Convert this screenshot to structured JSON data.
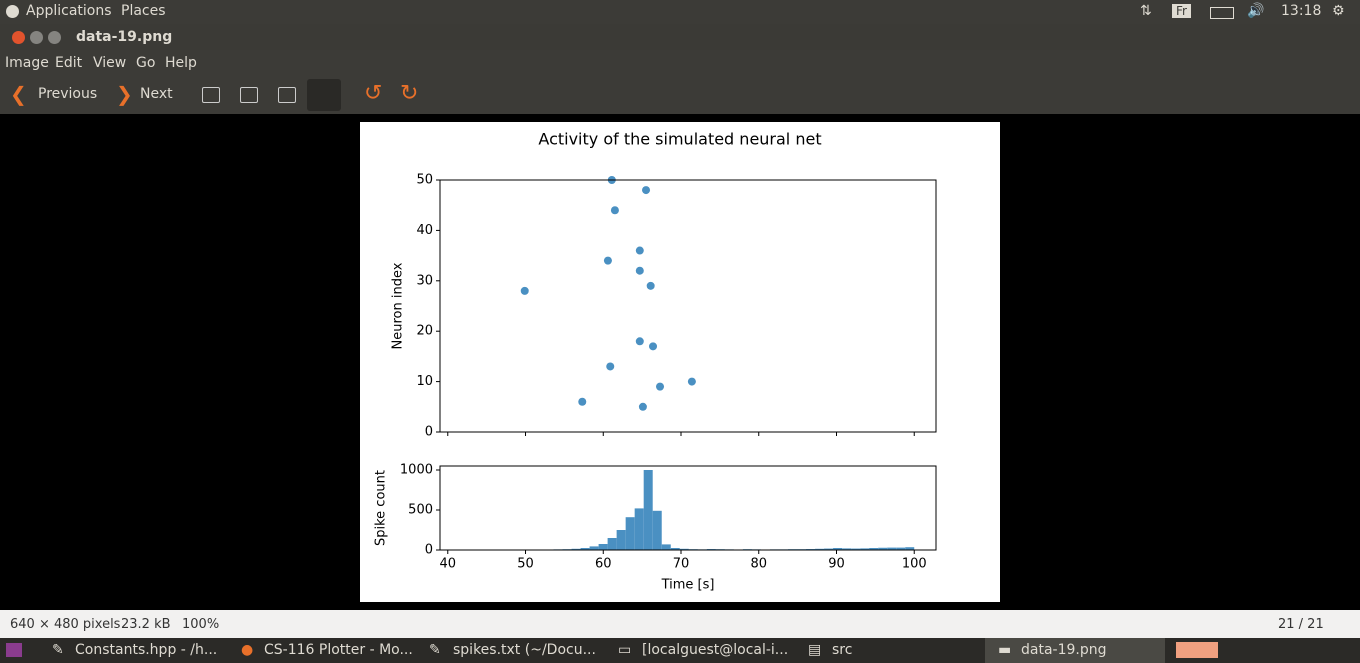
{
  "top_panel": {
    "menus": [
      "Applications",
      "Places"
    ],
    "keyboard": "Fr",
    "clock": "13:18"
  },
  "window": {
    "title": "data-19.png"
  },
  "menu": [
    "Image",
    "Edit",
    "View",
    "Go",
    "Help"
  ],
  "toolbar": {
    "previous": "Previous",
    "next": "Next"
  },
  "chart_data": [
    {
      "type": "scatter",
      "title": "Activity of the simulated neural net",
      "y_label": "Neuron index",
      "x": [
        61.1,
        65.5,
        61.5,
        64.7,
        60.6,
        64.7,
        66.1,
        49.9,
        64.7,
        66.4,
        60.9,
        71.4,
        67.3,
        57.3,
        65.1
      ],
      "values": [
        50,
        48,
        44,
        36,
        34,
        32,
        29,
        28,
        18,
        17,
        13,
        10,
        9,
        6,
        5
      ],
      "color": "#4a90c2",
      "xlim": [
        39,
        102.8
      ],
      "ylim": [
        0,
        50
      ],
      "yticks": [
        0,
        10,
        20,
        30,
        40,
        50
      ]
    },
    {
      "type": "histogram",
      "y_label": "Spike count",
      "x_label": "Time [s]",
      "bins": [
        42,
        43.16,
        44.32,
        45.48,
        46.64,
        47.8,
        48.96,
        50.12,
        51.28,
        52.44,
        53.6,
        54.76,
        55.92,
        57.08,
        58.24,
        59.4,
        60.56,
        61.72,
        62.88,
        64.04,
        65.2,
        66.36,
        67.52,
        68.68,
        69.84,
        71,
        72.16,
        73.32,
        74.48,
        75.64,
        76.8,
        77.96,
        79.12,
        80.28,
        81.44,
        82.6,
        83.76,
        84.92,
        86.08,
        87.24,
        88.4,
        89.56,
        90.72,
        91.88,
        93.04,
        94.2,
        95.36,
        96.52,
        97.68,
        98.84,
        100
      ],
      "values": [
        0,
        0,
        0,
        0,
        0,
        0,
        0,
        0,
        2,
        5,
        8,
        10,
        15,
        25,
        45,
        75,
        150,
        250,
        410,
        520,
        1000,
        490,
        70,
        25,
        15,
        10,
        8,
        12,
        10,
        8,
        6,
        10,
        8,
        6,
        8,
        8,
        10,
        10,
        12,
        15,
        18,
        25,
        20,
        18,
        20,
        25,
        28,
        30,
        30,
        35
      ],
      "color": "#4a90c2",
      "xlim": [
        39,
        102.8
      ],
      "ylim": [
        0,
        1050
      ],
      "xticks": [
        40,
        50,
        60,
        70,
        80,
        90,
        100
      ],
      "yticks": [
        0,
        500,
        1000
      ]
    }
  ],
  "status_bar": {
    "dimensions": "640 × 480 pixels",
    "size": "23.2 kB",
    "zoom": "100%",
    "position": "21 / 21"
  },
  "taskbar": [
    "Constants.hpp - /h...",
    "CS-116 Plotter - Mo...",
    "spikes.txt (~/Docu...",
    "[localguest@local-i...",
    "src",
    "data-19.png"
  ]
}
